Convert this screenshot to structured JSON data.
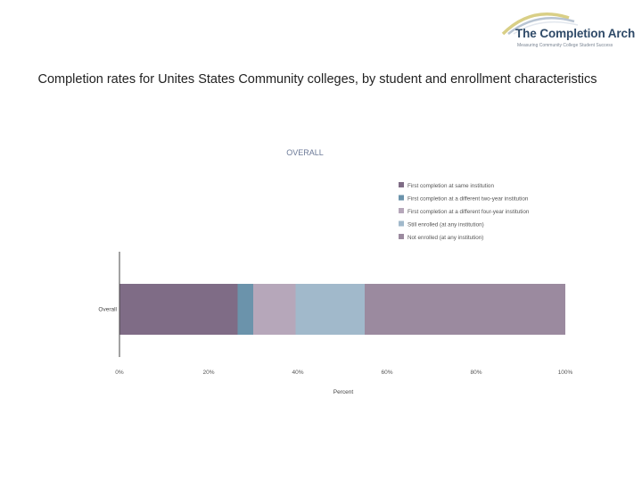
{
  "logo": {
    "title": "The Completion Arch",
    "tagline": "Measuring Community College Student Success"
  },
  "slide": {
    "title": "Completion rates for Unites States Community colleges, by student and enrollment characteristics"
  },
  "chart_data": {
    "type": "bar",
    "orientation": "horizontal",
    "stacked": true,
    "title": "OVERALL",
    "categories": [
      "Overall"
    ],
    "series": [
      {
        "name": "First completion at same institution",
        "values": [
          26.5
        ],
        "color": "#7f6c86"
      },
      {
        "name": "First completion at a different two-year institution",
        "values": [
          3.5
        ],
        "color": "#6b93ab"
      },
      {
        "name": "First completion at a different four-year institution",
        "values": [
          9.5
        ],
        "color": "#b6a7ba"
      },
      {
        "name": "Still enrolled (at any institution)",
        "values": [
          15.5
        ],
        "color": "#a1b9cb"
      },
      {
        "name": "Not enrolled (at any institution)",
        "values": [
          45
        ],
        "color": "#9b8a9f"
      }
    ],
    "xlabel": "Percent",
    "ylabel": "",
    "xlim": [
      0,
      100
    ],
    "xticks": [
      "0%",
      "20%",
      "40%",
      "60%",
      "80%",
      "100%"
    ],
    "legend_position": "top-right",
    "grid": false
  }
}
